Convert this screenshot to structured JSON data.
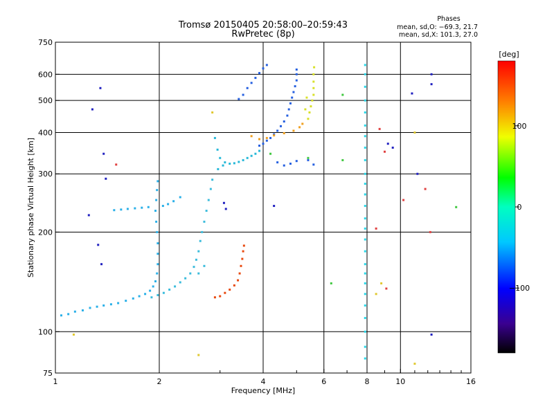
{
  "chart_data": {
    "type": "scatter",
    "title": "Tromsø 20150405 20:58:00–20:59:43",
    "subtitle": "RwPretec (8p)",
    "xlabel": "Frequency [MHz]",
    "ylabel": "Stationary phase Virtual Height [km]",
    "x_scale": "log",
    "y_scale": "log",
    "xlim": [
      1,
      16
    ],
    "ylim": [
      75,
      750
    ],
    "x_tick_labels": [
      "1",
      "2",
      "4",
      "6",
      "8",
      "10",
      "16"
    ],
    "x_ticks": [
      1,
      2,
      4,
      6,
      8,
      10,
      16
    ],
    "x_grid": [
      2,
      4,
      6,
      8,
      10
    ],
    "y_tick_labels": [
      "75",
      "100",
      "200",
      "300",
      "400",
      "500",
      "600",
      "750"
    ],
    "y_ticks": [
      75,
      100,
      200,
      300,
      400,
      500,
      600,
      750
    ],
    "y_grid": [
      100,
      200,
      300,
      400,
      500,
      600
    ],
    "grid": true,
    "legend": {
      "title": "Phases",
      "lines": [
        "mean, sd,O: −69.3, 21.7",
        "mean, sd,X: 101.3, 27.0"
      ],
      "placement": "top-right"
    },
    "colorbar": {
      "label": "[deg]",
      "min": -180,
      "max": 180,
      "tick_labels": [
        "100",
        "0",
        "−100"
      ],
      "ticks": [
        100,
        0,
        -100
      ],
      "colormap": "rainbow"
    },
    "series": [
      {
        "color": "#2ab0e8",
        "points": [
          [
            1.04,
            112
          ],
          [
            1.09,
            113
          ],
          [
            1.14,
            115
          ],
          [
            1.2,
            116
          ],
          [
            1.26,
            118
          ],
          [
            1.32,
            119
          ],
          [
            1.38,
            120
          ],
          [
            1.45,
            121
          ],
          [
            1.52,
            122
          ],
          [
            1.6,
            124
          ],
          [
            1.68,
            126
          ],
          [
            1.75,
            128
          ],
          [
            1.82,
            130
          ],
          [
            1.88,
            133
          ],
          [
            1.92,
            137
          ],
          [
            1.95,
            142
          ],
          [
            1.97,
            150
          ],
          [
            1.98,
            160
          ],
          [
            1.98,
            172
          ],
          [
            1.98,
            185
          ],
          [
            1.97,
            200
          ],
          [
            1.96,
            215
          ],
          [
            1.95,
            232
          ],
          [
            1.96,
            250
          ],
          [
            1.97,
            268
          ],
          [
            1.98,
            285
          ],
          [
            2.05,
            240
          ],
          [
            2.12,
            243
          ],
          [
            2.2,
            248
          ],
          [
            2.3,
            255
          ],
          [
            1.48,
            233
          ],
          [
            1.55,
            234
          ],
          [
            1.62,
            235
          ],
          [
            1.7,
            236
          ],
          [
            1.78,
            237
          ],
          [
            1.86,
            238
          ]
        ]
      },
      {
        "color": "#3bbcdc",
        "points": [
          [
            1.9,
            127
          ],
          [
            1.98,
            129
          ],
          [
            2.06,
            131
          ],
          [
            2.14,
            134
          ],
          [
            2.22,
            137
          ],
          [
            2.3,
            141
          ],
          [
            2.38,
            145
          ],
          [
            2.46,
            150
          ],
          [
            2.52,
            157
          ],
          [
            2.56,
            165
          ],
          [
            2.6,
            175
          ],
          [
            2.63,
            188
          ],
          [
            2.66,
            200
          ],
          [
            2.7,
            215
          ],
          [
            2.74,
            232
          ],
          [
            2.78,
            250
          ],
          [
            2.82,
            270
          ],
          [
            2.85,
            288
          ],
          [
            2.6,
            150
          ],
          [
            2.7,
            158
          ]
        ]
      },
      {
        "color": "#26b8d8",
        "points": [
          [
            2.9,
            385
          ],
          [
            2.95,
            355
          ],
          [
            3.0,
            335
          ],
          [
            3.1,
            325
          ],
          [
            3.2,
            322
          ],
          [
            3.3,
            323
          ],
          [
            3.4,
            326
          ],
          [
            3.5,
            330
          ],
          [
            3.6,
            335
          ],
          [
            3.7,
            340
          ],
          [
            3.8,
            345
          ],
          [
            3.9,
            352
          ],
          [
            2.96,
            310
          ],
          [
            3.06,
            318
          ]
        ]
      },
      {
        "color": "#2660e0",
        "points": [
          [
            3.9,
            365
          ],
          [
            4.0,
            370
          ],
          [
            4.1,
            378
          ],
          [
            4.2,
            385
          ],
          [
            4.3,
            395
          ],
          [
            4.4,
            405
          ],
          [
            4.5,
            418
          ],
          [
            4.6,
            432
          ],
          [
            4.7,
            450
          ],
          [
            4.75,
            470
          ],
          [
            4.8,
            490
          ],
          [
            4.85,
            510
          ],
          [
            4.9,
            530
          ],
          [
            4.95,
            552
          ],
          [
            5.0,
            575
          ],
          [
            5.0,
            600
          ],
          [
            5.0,
            620
          ],
          [
            3.4,
            505
          ],
          [
            3.5,
            520
          ],
          [
            3.6,
            545
          ],
          [
            3.7,
            565
          ],
          [
            3.8,
            585
          ],
          [
            3.9,
            605
          ],
          [
            4.0,
            625
          ],
          [
            4.1,
            640
          ],
          [
            4.4,
            325
          ],
          [
            4.6,
            318
          ],
          [
            4.8,
            322
          ],
          [
            5.0,
            328
          ],
          [
            5.4,
            330
          ],
          [
            5.6,
            320
          ]
        ]
      },
      {
        "color": "#f0a020",
        "points": [
          [
            3.7,
            390
          ],
          [
            3.9,
            382
          ],
          [
            4.1,
            385
          ],
          [
            4.3,
            392
          ],
          [
            4.6,
            398
          ],
          [
            4.9,
            405
          ],
          [
            5.1,
            415
          ],
          [
            5.2,
            425
          ]
        ]
      },
      {
        "color": "#d8e02a",
        "points": [
          [
            5.4,
            440
          ],
          [
            5.45,
            460
          ],
          [
            5.5,
            480
          ],
          [
            5.55,
            500
          ],
          [
            5.6,
            520
          ],
          [
            5.6,
            545
          ],
          [
            5.6,
            570
          ],
          [
            5.6,
            600
          ],
          [
            5.62,
            630
          ],
          [
            5.3,
            470
          ],
          [
            5.35,
            510
          ]
        ]
      },
      {
        "color": "#e84a10",
        "points": [
          [
            2.9,
            127
          ],
          [
            3.0,
            128
          ],
          [
            3.1,
            131
          ],
          [
            3.2,
            134
          ],
          [
            3.3,
            138
          ],
          [
            3.38,
            143
          ],
          [
            3.42,
            150
          ],
          [
            3.45,
            158
          ],
          [
            3.48,
            166
          ],
          [
            3.5,
            175
          ],
          [
            3.52,
            182
          ]
        ]
      },
      {
        "color": "#2ad8e8",
        "points": [
          [
            7.9,
            83
          ],
          [
            7.9,
            90
          ],
          [
            7.9,
            100
          ],
          [
            7.9,
            110
          ],
          [
            7.9,
            120
          ],
          [
            7.9,
            130
          ],
          [
            7.9,
            140
          ],
          [
            7.9,
            150
          ],
          [
            7.9,
            160
          ],
          [
            7.9,
            175
          ],
          [
            7.9,
            190
          ],
          [
            7.9,
            205
          ],
          [
            7.9,
            220
          ],
          [
            7.9,
            240
          ],
          [
            7.9,
            260
          ],
          [
            7.9,
            280
          ],
          [
            7.9,
            300
          ],
          [
            7.9,
            330
          ],
          [
            7.9,
            360
          ],
          [
            7.9,
            390
          ],
          [
            7.9,
            420
          ],
          [
            7.9,
            460
          ],
          [
            7.9,
            500
          ],
          [
            7.9,
            550
          ],
          [
            7.9,
            600
          ],
          [
            7.9,
            640
          ]
        ]
      },
      {
        "color": "#2020c0",
        "points": [
          [
            1.25,
            225
          ],
          [
            1.33,
            183
          ],
          [
            1.35,
            545
          ],
          [
            1.28,
            470
          ],
          [
            1.38,
            345
          ],
          [
            1.4,
            290
          ],
          [
            1.36,
            160
          ],
          [
            12.3,
            600
          ],
          [
            12.3,
            560
          ],
          [
            12.3,
            98
          ],
          [
            11.2,
            300
          ],
          [
            9.2,
            370
          ],
          [
            9.5,
            360
          ],
          [
            10.8,
            525
          ],
          [
            3.08,
            245
          ],
          [
            3.12,
            235
          ],
          [
            4.3,
            240
          ]
        ]
      },
      {
        "color": "#e04040",
        "points": [
          [
            1.5,
            320
          ],
          [
            8.5,
            205
          ],
          [
            9.0,
            350
          ],
          [
            10.2,
            250
          ],
          [
            11.8,
            270
          ],
          [
            12.2,
            200
          ],
          [
            9.1,
            135
          ],
          [
            8.7,
            410
          ]
        ]
      },
      {
        "color": "#e0c830",
        "points": [
          [
            1.13,
            98
          ],
          [
            2.6,
            85
          ],
          [
            11.0,
            80
          ],
          [
            11.0,
            400
          ],
          [
            8.5,
            130
          ],
          [
            8.8,
            140
          ],
          [
            2.85,
            460
          ]
        ]
      },
      {
        "color": "#40c840",
        "points": [
          [
            4.2,
            345
          ],
          [
            5.4,
            335
          ],
          [
            6.8,
            520
          ],
          [
            14.5,
            238
          ],
          [
            6.3,
            140
          ],
          [
            6.8,
            330
          ]
        ]
      }
    ]
  }
}
